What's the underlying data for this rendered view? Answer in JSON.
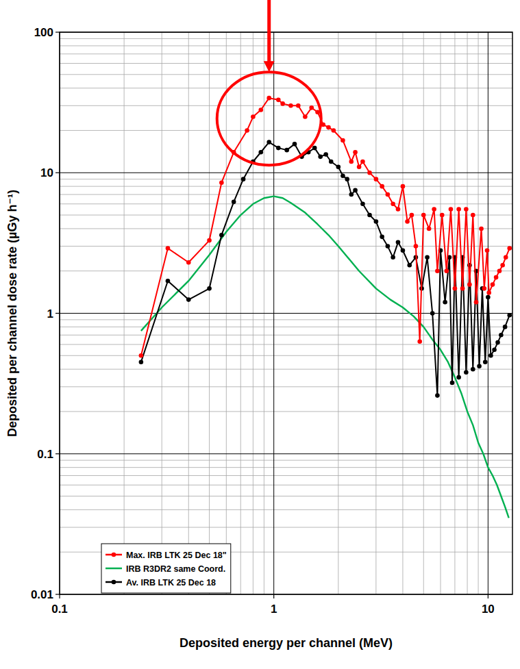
{
  "chart_data": {
    "type": "line",
    "x_label": "Deposited energy per channel (MeV)",
    "y_label": "Deposited per channel dose rate (µGy h⁻¹)",
    "log": true,
    "grid": true,
    "legend": "lower left",
    "xlim": [
      0.1,
      13
    ],
    "ylim": [
      0.01,
      100
    ],
    "xticks": [
      0.1,
      1,
      10
    ],
    "yticks": [
      0.01,
      0.1,
      1,
      10,
      100
    ],
    "series": [
      {
        "name": "Max. IRB LTK 25 Dec 18\"",
        "color": "#ff0000",
        "marker": "circle",
        "line_style": "solid",
        "x": [
          0.24,
          0.32,
          0.4,
          0.5,
          0.57,
          0.65,
          0.75,
          0.8,
          0.87,
          0.95,
          1.05,
          1.1,
          1.2,
          1.3,
          1.4,
          1.5,
          1.6,
          1.7,
          1.8,
          1.9,
          2.1,
          2.3,
          2.4,
          2.5,
          2.6,
          2.8,
          3.0,
          3.2,
          3.4,
          3.6,
          3.8,
          4.0,
          4.2,
          4.4,
          4.6,
          4.8,
          5.0,
          5.3,
          5.6,
          5.8,
          6.1,
          6.4,
          6.7,
          7.0,
          7.3,
          7.6,
          7.9,
          8.2,
          8.5,
          8.8,
          9.3,
          9.6,
          9.9,
          10.1,
          10.5,
          10.9,
          11.3,
          11.7,
          12.1,
          12.6
        ],
        "values": [
          0.5,
          2.9,
          2.3,
          3.3,
          8.5,
          14,
          20,
          25,
          28,
          34,
          33,
          31,
          30,
          30,
          25,
          29,
          27,
          22,
          21,
          20,
          17,
          12,
          14,
          11,
          12,
          10,
          9,
          8,
          7,
          6,
          5.5,
          8,
          4.5,
          5,
          3,
          0.63,
          5,
          4,
          5.5,
          2,
          5,
          2,
          5.5,
          1.5,
          5.5,
          1.5,
          5.5,
          1.6,
          5,
          1.2,
          4,
          1.5,
          2.8,
          1.4,
          1.6,
          1.8,
          2.0,
          2.2,
          2.5,
          2.9
        ]
      },
      {
        "name": "IRB R3DR2 same Coord.",
        "color": "#00b050",
        "marker": "none",
        "line_style": "solid",
        "x": [
          0.24,
          0.3,
          0.4,
          0.5,
          0.6,
          0.7,
          0.8,
          0.9,
          1.0,
          1.1,
          1.2,
          1.4,
          1.6,
          1.8,
          2.0,
          2.5,
          3.0,
          3.5,
          4.0,
          4.5,
          5.0,
          5.5,
          6.0,
          6.5,
          7.0,
          7.5,
          8.0,
          8.5,
          9.0,
          9.5,
          10,
          10.5,
          11,
          11.5,
          12,
          12.5
        ],
        "values": [
          0.75,
          1.1,
          1.7,
          2.6,
          3.8,
          5.0,
          6.0,
          6.6,
          6.8,
          6.6,
          6.1,
          5.2,
          4.3,
          3.6,
          3.0,
          2.0,
          1.5,
          1.25,
          1.1,
          0.95,
          0.8,
          0.65,
          0.55,
          0.45,
          0.35,
          0.27,
          0.2,
          0.16,
          0.12,
          0.1,
          0.08,
          0.07,
          0.06,
          0.05,
          0.042,
          0.035
        ]
      },
      {
        "name": "Av. IRB LTK 25 Dec 18",
        "color": "#000000",
        "marker": "circle",
        "line_style": "solid",
        "x": [
          0.24,
          0.32,
          0.4,
          0.5,
          0.57,
          0.65,
          0.72,
          0.8,
          0.87,
          0.95,
          1.05,
          1.15,
          1.25,
          1.35,
          1.45,
          1.55,
          1.65,
          1.75,
          1.85,
          2.0,
          2.1,
          2.2,
          2.3,
          2.4,
          2.6,
          2.8,
          3.0,
          3.2,
          3.4,
          3.6,
          3.8,
          4.0,
          4.3,
          4.6,
          4.9,
          5.2,
          5.5,
          5.8,
          6.0,
          6.3,
          6.6,
          6.8,
          7.0,
          7.3,
          7.6,
          7.9,
          8.2,
          8.5,
          8.8,
          9.1,
          9.4,
          9.7,
          10,
          10.3,
          10.7,
          11.1,
          11.5,
          12,
          12.6
        ],
        "values": [
          0.45,
          1.7,
          1.25,
          1.5,
          3.6,
          6.2,
          9,
          12,
          14,
          16.5,
          15,
          14.5,
          16,
          13,
          14,
          15,
          13,
          13.5,
          12,
          11,
          9.5,
          9,
          7,
          7.5,
          6,
          5,
          4.5,
          3.5,
          3,
          2.5,
          3.2,
          2.8,
          2.2,
          2.5,
          1.5,
          2.5,
          1,
          0.26,
          2.8,
          1.2,
          2.5,
          0.32,
          2.5,
          0.35,
          2.5,
          0.38,
          2.2,
          0.4,
          2,
          0.42,
          1.5,
          0.45,
          1.3,
          0.5,
          0.55,
          0.62,
          0.7,
          0.8,
          0.97
        ]
      }
    ]
  }
}
